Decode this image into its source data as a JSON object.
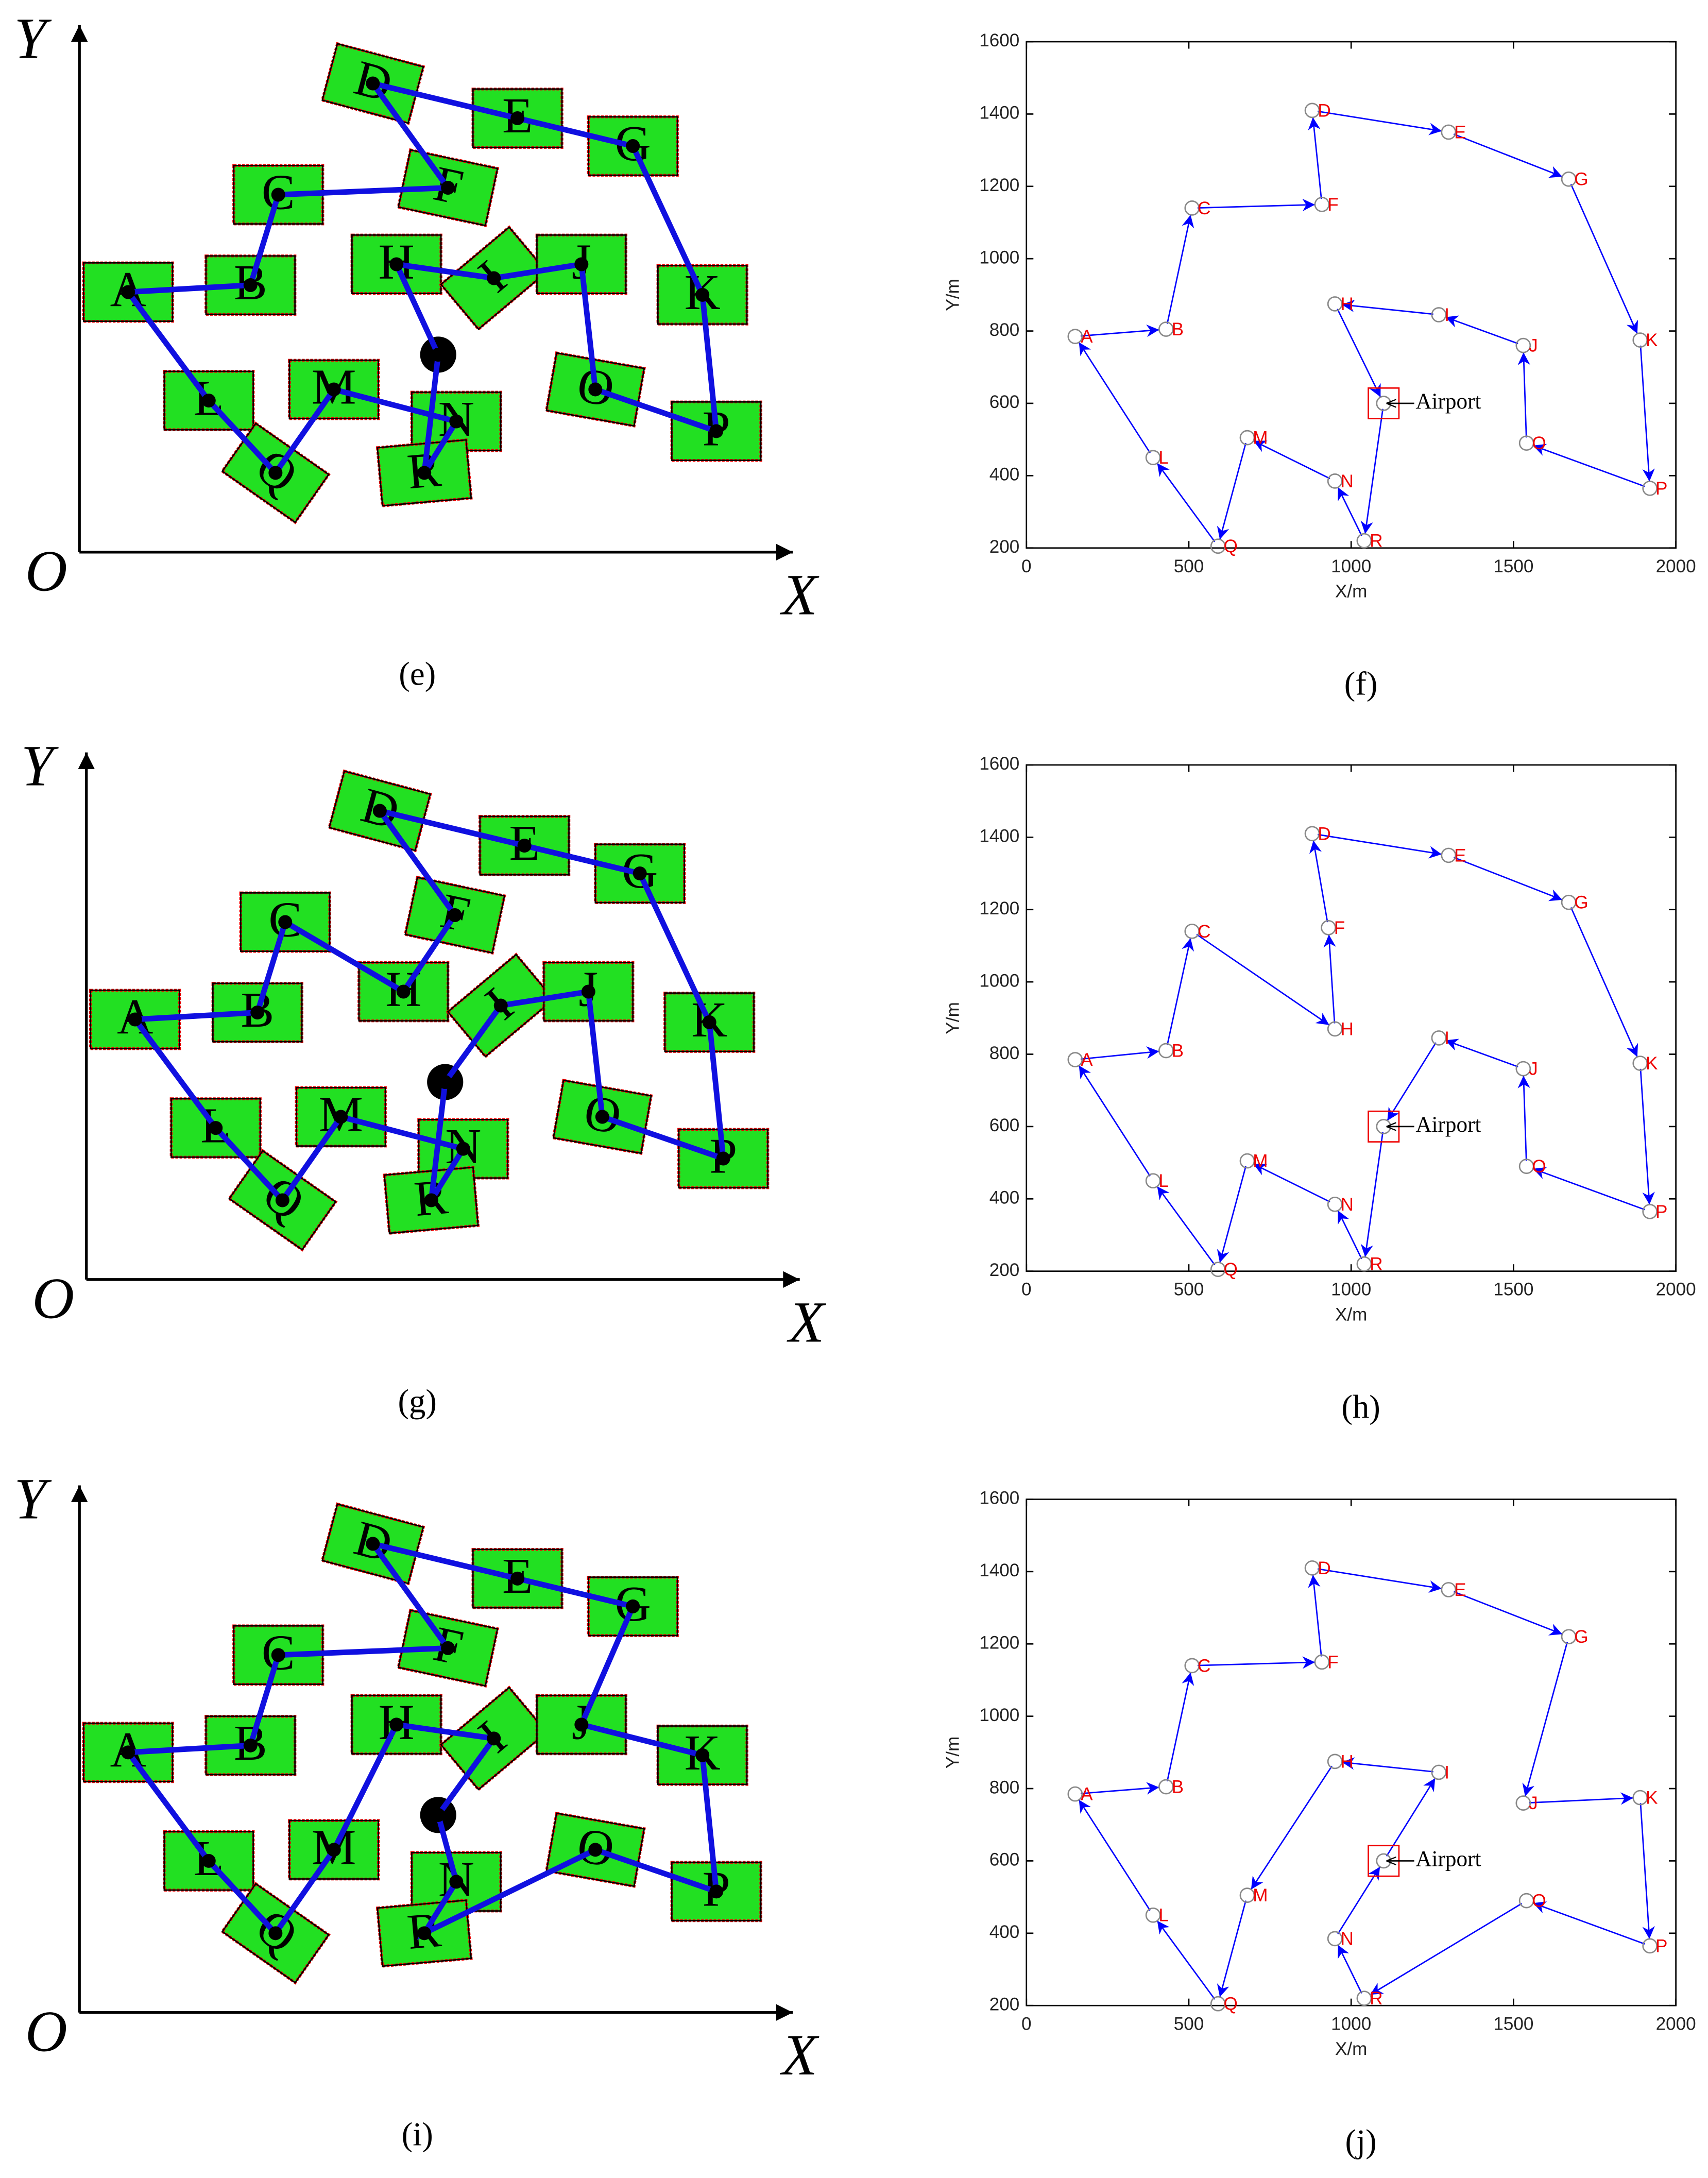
{
  "chart_data": [
    {
      "type": "line",
      "label": "(f)",
      "x_label": "X/m",
      "y_label": "Y/m",
      "xlim": [
        0,
        2000
      ],
      "ylim": [
        200,
        1600
      ],
      "xticks": [
        0,
        500,
        1000,
        1500,
        2000
      ],
      "yticks": [
        200,
        400,
        600,
        800,
        1000,
        1200,
        1400,
        1600
      ],
      "nodes": {
        "names": [
          "A",
          "B",
          "C",
          "D",
          "E",
          "F",
          "G",
          "H",
          "I",
          "J",
          "K",
          "L",
          "M",
          "N",
          "O",
          "P",
          "Q",
          "R",
          "Airport"
        ],
        "x": [
          150,
          430,
          510,
          880,
          1300,
          910,
          1670,
          950,
          1270,
          1530,
          1890,
          390,
          680,
          950,
          1540,
          1920,
          590,
          1040,
          1100
        ],
        "y": [
          785,
          805,
          1140,
          1410,
          1350,
          1150,
          1220,
          875,
          845,
          760,
          775,
          450,
          505,
          385,
          490,
          365,
          205,
          220,
          600
        ]
      },
      "route": [
        "Airport",
        "R",
        "N",
        "M",
        "Q",
        "L",
        "A",
        "B",
        "C",
        "F",
        "D",
        "E",
        "G",
        "K",
        "P",
        "O",
        "J",
        "I",
        "H",
        "Airport"
      ]
    },
    {
      "type": "line",
      "label": "(h)",
      "x_label": "X/m",
      "y_label": "Y/m",
      "xlim": [
        0,
        2000
      ],
      "ylim": [
        200,
        1600
      ],
      "xticks": [
        0,
        500,
        1000,
        1500,
        2000
      ],
      "yticks": [
        200,
        400,
        600,
        800,
        1000,
        1200,
        1400,
        1600
      ],
      "nodes": {
        "names": [
          "A",
          "B",
          "C",
          "D",
          "E",
          "F",
          "G",
          "H",
          "I",
          "J",
          "K",
          "L",
          "M",
          "N",
          "O",
          "P",
          "Q",
          "R",
          "Airport"
        ],
        "x": [
          150,
          430,
          510,
          880,
          1300,
          930,
          1670,
          950,
          1270,
          1530,
          1890,
          390,
          680,
          950,
          1540,
          1920,
          590,
          1040,
          1100
        ],
        "y": [
          785,
          810,
          1140,
          1410,
          1350,
          1150,
          1220,
          870,
          845,
          760,
          775,
          450,
          505,
          385,
          490,
          365,
          205,
          220,
          600
        ]
      },
      "route": [
        "Airport",
        "R",
        "N",
        "M",
        "Q",
        "L",
        "A",
        "B",
        "C",
        "H",
        "F",
        "D",
        "E",
        "G",
        "K",
        "P",
        "O",
        "J",
        "I",
        "Airport"
      ]
    },
    {
      "type": "line",
      "label": "(j)",
      "x_label": "X/m",
      "y_label": "Y/m",
      "xlim": [
        0,
        2000
      ],
      "ylim": [
        200,
        1600
      ],
      "xticks": [
        0,
        500,
        1000,
        1500,
        2000
      ],
      "yticks": [
        200,
        400,
        600,
        800,
        1000,
        1200,
        1400,
        1600
      ],
      "nodes": {
        "names": [
          "A",
          "B",
          "C",
          "D",
          "E",
          "F",
          "G",
          "H",
          "I",
          "J",
          "K",
          "L",
          "M",
          "N",
          "O",
          "P",
          "Q",
          "R",
          "Airport"
        ],
        "x": [
          150,
          430,
          510,
          880,
          1300,
          910,
          1670,
          950,
          1270,
          1530,
          1890,
          390,
          680,
          950,
          1540,
          1920,
          590,
          1040,
          1100
        ],
        "y": [
          785,
          805,
          1140,
          1410,
          1350,
          1150,
          1220,
          875,
          845,
          760,
          775,
          450,
          505,
          385,
          490,
          365,
          205,
          220,
          600
        ]
      },
      "route": [
        "Airport",
        "I",
        "H",
        "M",
        "Q",
        "L",
        "A",
        "B",
        "C",
        "F",
        "D",
        "E",
        "G",
        "J",
        "K",
        "P",
        "O",
        "R",
        "N",
        "Airport"
      ]
    }
  ],
  "diagrams": [
    {
      "label": "(e)",
      "x_axis": "X",
      "y_axis": "Y",
      "origin": "O",
      "blocks": [
        "A",
        "B",
        "C",
        "D",
        "E",
        "F",
        "G",
        "H",
        "I",
        "J",
        "K",
        "L",
        "M",
        "N",
        "O",
        "P",
        "Q",
        "R"
      ]
    },
    {
      "label": "(g)",
      "x_axis": "X",
      "y_axis": "Y",
      "origin": "O",
      "blocks": [
        "A",
        "B",
        "C",
        "D",
        "E",
        "F",
        "G",
        "H",
        "I",
        "J",
        "K",
        "L",
        "M",
        "N",
        "O",
        "P",
        "Q",
        "R"
      ]
    },
    {
      "label": "(i)",
      "x_axis": "X",
      "y_axis": "Y",
      "origin": "O",
      "blocks": [
        "A",
        "B",
        "C",
        "D",
        "E",
        "F",
        "G",
        "H",
        "I",
        "J",
        "K",
        "L",
        "M",
        "N",
        "O",
        "P",
        "Q",
        "R"
      ]
    }
  ]
}
